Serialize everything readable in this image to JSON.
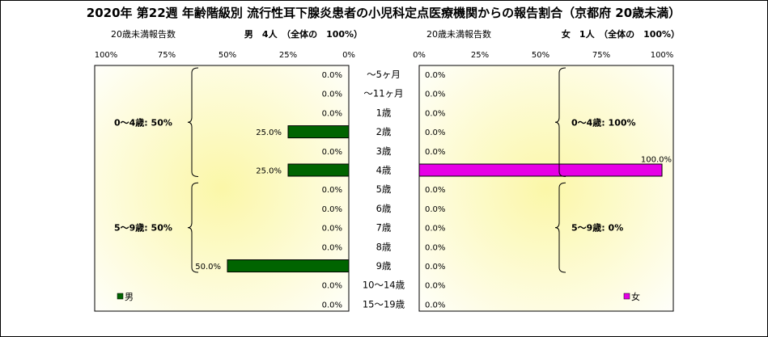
{
  "title": "2020年 第22週 年齢階級別 流行性耳下腺炎患者の小児科定点医療機関からの報告割合（京都府 20歳未満）",
  "left_header": {
    "label": "20歳未満報告数",
    "summary": "男　4人　（全体の　100%）"
  },
  "right_header": {
    "label": "20歳未満報告数",
    "summary": "女　1人　（全体の　100%）"
  },
  "colors": {
    "male": "#006400",
    "female": "#e600e6",
    "plot_bg_center": "#fbf7a8",
    "plot_bg_edge": "#ffffff"
  },
  "chart_data": {
    "type": "bar",
    "orientation": "horizontal",
    "layout": "population-pyramid",
    "categories": [
      "～5ヶ月",
      "～11ヶ月",
      "1歳",
      "2歳",
      "3歳",
      "4歳",
      "5歳",
      "6歳",
      "7歳",
      "8歳",
      "9歳",
      "10～14歳",
      "15～19歳"
    ],
    "series": [
      {
        "name": "男",
        "side": "left",
        "values": [
          0.0,
          0.0,
          0.0,
          25.0,
          0.0,
          25.0,
          0.0,
          0.0,
          0.0,
          0.0,
          50.0,
          0.0,
          0.0
        ],
        "labels": [
          "0.0%",
          "0.0%",
          "0.0%",
          "25.0%",
          "0.0%",
          "25.0%",
          "0.0%",
          "0.0%",
          "0.0%",
          "0.0%",
          "50.0%",
          "0.0%",
          "0.0%"
        ]
      },
      {
        "name": "女",
        "side": "right",
        "values": [
          0.0,
          0.0,
          0.0,
          0.0,
          0.0,
          100.0,
          0.0,
          0.0,
          0.0,
          0.0,
          0.0,
          0.0,
          0.0
        ],
        "labels": [
          "0.0%",
          "0.0%",
          "0.0%",
          "0.0%",
          "0.0%",
          "100.0%",
          "0.0%",
          "0.0%",
          "0.0%",
          "0.0%",
          "0.0%",
          "0.0%",
          "0.0%"
        ]
      }
    ],
    "xlim": [
      0,
      100
    ],
    "left_ticks": [
      "100%",
      "75%",
      "50%",
      "25%",
      "0%"
    ],
    "right_ticks": [
      "0%",
      "25%",
      "50%",
      "75%",
      "100%"
    ],
    "groups": {
      "male": [
        {
          "label": "0～4歳: 50%",
          "from": 0,
          "to": 5
        },
        {
          "label": "5～9歳: 50%",
          "from": 6,
          "to": 10
        }
      ],
      "female": [
        {
          "label": "0～4歳: 100%",
          "from": 0,
          "to": 5
        },
        {
          "label": "5～9歳: 0%",
          "from": 6,
          "to": 10
        }
      ]
    },
    "legend": {
      "male": "男",
      "female": "女",
      "placement": "bottom-left / bottom-right"
    }
  }
}
